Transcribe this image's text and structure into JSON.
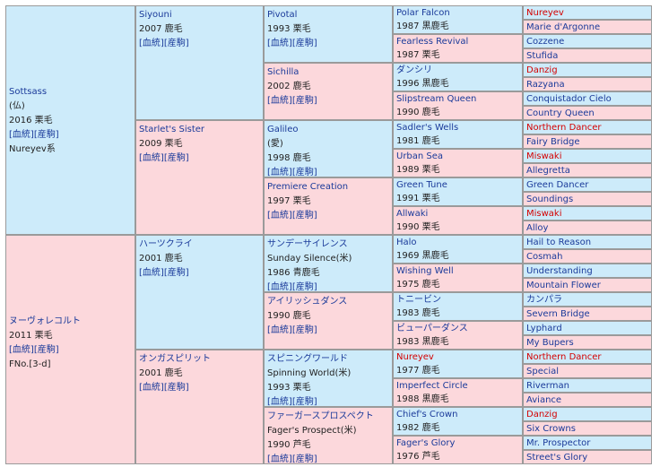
{
  "links": {
    "lineage": "[血統]",
    "produce": "[産駒]"
  },
  "gen1": [
    {
      "name": "Sottsass",
      "sub": "(仏)",
      "year_color": "2016 栗毛",
      "tail": "Nureyev系"
    },
    {
      "name": "ヌーヴォレコルト",
      "year_color": "2011 栗毛",
      "tail": "FNo.[3-d]"
    }
  ],
  "gen2": [
    {
      "name": "Siyouni",
      "year_color": "2007 鹿毛"
    },
    {
      "name": "Starlet's Sister",
      "year_color": "2009 栗毛"
    },
    {
      "name": "ハーツクライ",
      "year_color": "2001 鹿毛"
    },
    {
      "name": "オンガスピリット",
      "year_color": "2001 鹿毛"
    }
  ],
  "gen3": [
    {
      "name": "Pivotal",
      "year_color": "1993 栗毛"
    },
    {
      "name": "Sichilla",
      "year_color": "2002 鹿毛"
    },
    {
      "name": "Galileo",
      "sub": "(愛)",
      "year_color": "1998 鹿毛"
    },
    {
      "name": "Premiere Creation",
      "year_color": "1997 栗毛"
    },
    {
      "name": "サンデーサイレンス",
      "sub": "Sunday Silence(米)",
      "year_color": "1986 青鹿毛"
    },
    {
      "name": "アイリッシュダンス",
      "year_color": "1990 鹿毛"
    },
    {
      "name": "スピニングワールド",
      "sub": "Spinning World(米)",
      "year_color": "1993 栗毛"
    },
    {
      "name": "ファーガースプロスペクト",
      "sub": "Fager's Prospect(米)",
      "year_color": "1990 芦毛"
    }
  ],
  "gen4": [
    {
      "name": "Polar Falcon",
      "year_color": "1987 黒鹿毛"
    },
    {
      "name": "Fearless Revival",
      "year_color": "1987 栗毛"
    },
    {
      "name": "ダンシリ",
      "year_color": "1996 黒鹿毛"
    },
    {
      "name": "Slipstream Queen",
      "year_color": "1990 鹿毛"
    },
    {
      "name": "Sadler's Wells",
      "year_color": "1981 鹿毛"
    },
    {
      "name": "Urban Sea",
      "year_color": "1989 栗毛"
    },
    {
      "name": "Green Tune",
      "year_color": "1991 栗毛"
    },
    {
      "name": "Allwaki",
      "year_color": "1990 栗毛"
    },
    {
      "name": "Halo",
      "year_color": "1969 黒鹿毛"
    },
    {
      "name": "Wishing Well",
      "year_color": "1975 鹿毛"
    },
    {
      "name": "トニービン",
      "year_color": "1983 鹿毛"
    },
    {
      "name": "ビューパーダンス",
      "year_color": "1983 黒鹿毛"
    },
    {
      "name": "Nureyev",
      "year_color": "1977 鹿毛",
      "red": true
    },
    {
      "name": "Imperfect Circle",
      "year_color": "1988 黒鹿毛"
    },
    {
      "name": "Chief's Crown",
      "year_color": "1982 鹿毛"
    },
    {
      "name": "Fager's Glory",
      "year_color": "1976 芦毛"
    }
  ],
  "gen5": [
    {
      "name": "Nureyev",
      "red": true
    },
    {
      "name": "Marie d'Argonne"
    },
    {
      "name": "Cozzene"
    },
    {
      "name": "Stufida"
    },
    {
      "name": "Danzig",
      "red": true
    },
    {
      "name": "Razyana"
    },
    {
      "name": "Conquistador Cielo"
    },
    {
      "name": "Country Queen"
    },
    {
      "name": "Northern Dancer",
      "red": true
    },
    {
      "name": "Fairy Bridge"
    },
    {
      "name": "Miswaki",
      "red": true
    },
    {
      "name": "Allegretta"
    },
    {
      "name": "Green Dancer"
    },
    {
      "name": "Soundings"
    },
    {
      "name": "Miswaki",
      "red": true
    },
    {
      "name": "Alloy"
    },
    {
      "name": "Hail to Reason"
    },
    {
      "name": "Cosmah"
    },
    {
      "name": "Understanding"
    },
    {
      "name": "Mountain Flower"
    },
    {
      "name": "カンパラ"
    },
    {
      "name": "Severn Bridge"
    },
    {
      "name": "Lyphard"
    },
    {
      "name": "My Bupers"
    },
    {
      "name": "Northern Dancer",
      "red": true
    },
    {
      "name": "Special"
    },
    {
      "name": "Riverman"
    },
    {
      "name": "Aviance"
    },
    {
      "name": "Danzig",
      "red": true
    },
    {
      "name": "Six Crowns"
    },
    {
      "name": "Mr. Prospector"
    },
    {
      "name": "Street's Glory"
    }
  ]
}
